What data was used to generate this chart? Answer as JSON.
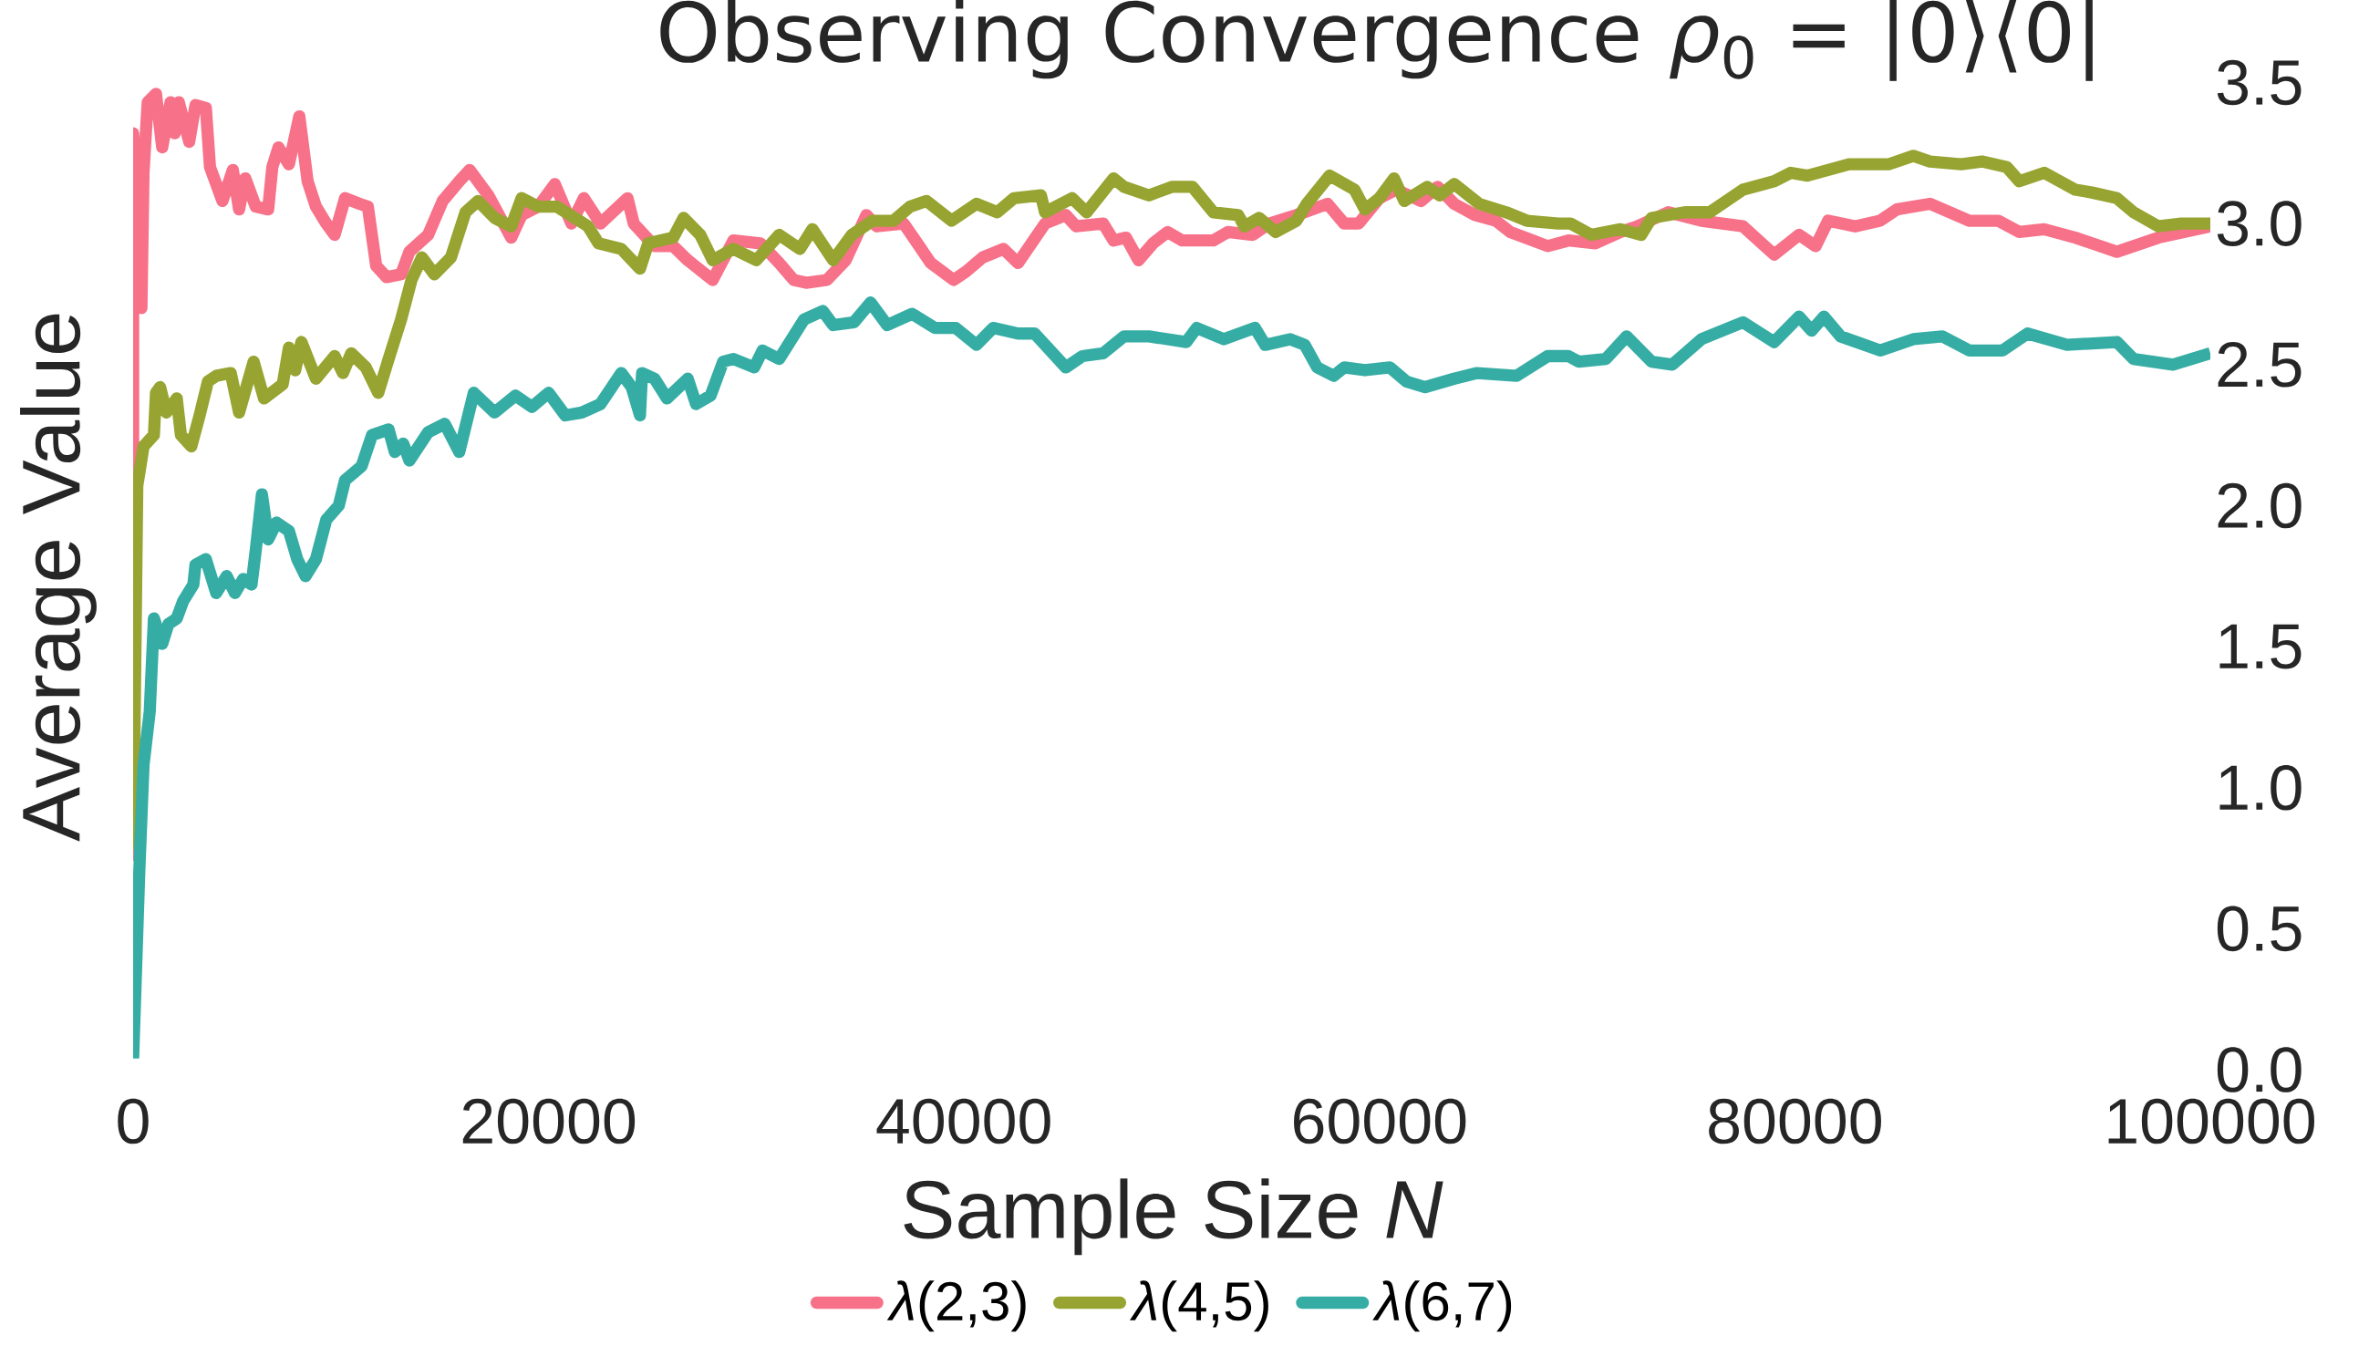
{
  "chart_data": {
    "type": "line",
    "title": "Observing Convergence *ρ*$_{0}$ = |0⟩⟨0|",
    "xlabel": "Sample Size *N*",
    "ylabel": "Average Value",
    "xlim": [
      0,
      100000
    ],
    "ylim": [
      0,
      3.5
    ],
    "xticks": [
      0,
      20000,
      40000,
      60000,
      80000,
      100000
    ],
    "yticks": [
      {
        "value": 0,
        "label": "0.0"
      },
      {
        "value": 0.5,
        "label": "0.5"
      },
      {
        "value": 1,
        "label": "1.0"
      },
      {
        "value": 1.5,
        "label": "1.5"
      },
      {
        "value": 2,
        "label": "2.0"
      },
      {
        "value": 2.5,
        "label": "2.5"
      },
      {
        "value": 3,
        "label": "3.0"
      },
      {
        "value": 3.5,
        "label": "3.5"
      }
    ],
    "legend": "bottom",
    "series": [
      {
        "name": "*λ*(2,3)",
        "color": "#f77189",
        "x": [
          0,
          0,
          400,
          500,
          700,
          1100,
          1400,
          1800,
          2000,
          2200,
          2700,
          3000,
          3500,
          3700,
          4300,
          4800,
          5100,
          5400,
          5900,
          6500,
          6700,
          7000,
          7500,
          8000,
          8400,
          8800,
          9300,
          9700,
          10200,
          10900,
          11300,
          11700,
          12200,
          12900,
          13300,
          14200,
          14900,
          15700,
          16200,
          17100,
          18200,
          18700,
          19500,
          20300,
          21100,
          21700,
          22500,
          23800,
          24100,
          25100,
          26000,
          26700,
          27900,
          28900,
          30200,
          31100,
          31800,
          32400,
          33400,
          34300,
          35300,
          35800,
          37100,
          38400,
          39500,
          40100,
          40900,
          41900,
          42600,
          43900,
          44900,
          45400,
          46700,
          47200,
          47800,
          48400,
          49100,
          49800,
          50500,
          52000,
          52700,
          53900,
          54700,
          56000,
          57500,
          58300,
          59000,
          60000,
          60800,
          62000,
          62800,
          63600,
          64600,
          65600,
          66300,
          68100,
          69100,
          70400,
          71600,
          72400,
          73900,
          75500,
          77500,
          79000,
          80200,
          81000,
          81600,
          82900,
          84100,
          84900,
          86500,
          88400,
          89800,
          90800,
          92000,
          93500,
          95500,
          97500,
          100000
        ],
        "values": [
          0.74,
          3.32,
          2.7,
          3.18,
          3.43,
          3.46,
          3.27,
          3.43,
          3.32,
          3.43,
          3.29,
          3.42,
          3.41,
          3.2,
          3.08,
          3.19,
          3.05,
          3.16,
          3.06,
          3.05,
          3.2,
          3.27,
          3.21,
          3.38,
          3.15,
          3.06,
          3.0,
          2.96,
          3.09,
          3.07,
          3.06,
          2.85,
          2.81,
          2.82,
          2.9,
          2.96,
          3.08,
          3.15,
          3.19,
          3.1,
          2.95,
          3.03,
          3.06,
          3.14,
          3.0,
          3.09,
          3.0,
          3.09,
          3.0,
          2.92,
          2.92,
          2.87,
          2.8,
          2.94,
          2.93,
          2.86,
          2.8,
          2.79,
          2.8,
          2.87,
          3.03,
          2.99,
          3.0,
          2.86,
          2.8,
          2.83,
          2.88,
          2.91,
          2.86,
          3.0,
          3.03,
          2.99,
          3.0,
          2.94,
          2.95,
          2.87,
          2.93,
          2.97,
          2.94,
          2.94,
          2.97,
          2.96,
          3.0,
          3.03,
          3.07,
          3.0,
          3.0,
          3.09,
          3.12,
          3.08,
          3.13,
          3.07,
          3.03,
          3.01,
          2.97,
          2.92,
          2.94,
          2.93,
          2.97,
          2.99,
          3.04,
          3.01,
          2.99,
          2.89,
          2.96,
          2.92,
          3.01,
          2.99,
          3.01,
          3.05,
          3.07,
          3.01,
          3.01,
          2.97,
          2.98,
          2.95,
          2.9,
          2.95,
          2.99
        ]
      },
      {
        "name": "*λ*(4,5)",
        "color": "#97a431",
        "x": [
          0,
          200,
          500,
          1000,
          1100,
          1300,
          1600,
          2100,
          2300,
          2800,
          3200,
          3600,
          4000,
          4700,
          5100,
          5800,
          6300,
          7200,
          7500,
          7800,
          8100,
          8800,
          9700,
          10100,
          10500,
          11200,
          11800,
          12300,
          12900,
          13400,
          13900,
          14500,
          15300,
          16000,
          16600,
          17400,
          18200,
          18700,
          19500,
          20400,
          21900,
          22400,
          23500,
          24400,
          24800,
          26000,
          26500,
          27300,
          27900,
          28900,
          30000,
          31100,
          32100,
          32700,
          33700,
          34600,
          35600,
          36600,
          37400,
          38200,
          39400,
          40600,
          41600,
          42400,
          43700,
          43900,
          45200,
          45900,
          47200,
          47700,
          48900,
          50000,
          51000,
          52000,
          53200,
          53500,
          54200,
          55000,
          56000,
          56500,
          57600,
          58800,
          59300,
          60000,
          60700,
          61200,
          62300,
          62900,
          63600,
          64800,
          66100,
          67100,
          68600,
          69200,
          70200,
          71600,
          72600,
          73100,
          74700,
          75900,
          77500,
          79000,
          79800,
          80600,
          82600,
          84500,
          85700,
          86500,
          88000,
          89000,
          90200,
          90800,
          92000,
          93500,
          94300,
          95500,
          96300,
          97500,
          98600,
          100000
        ],
        "values": [
          0.78,
          2.07,
          2.21,
          2.25,
          2.4,
          2.42,
          2.33,
          2.38,
          2.25,
          2.21,
          2.32,
          2.44,
          2.46,
          2.47,
          2.33,
          2.51,
          2.38,
          2.43,
          2.56,
          2.48,
          2.58,
          2.45,
          2.53,
          2.47,
          2.54,
          2.49,
          2.4,
          2.52,
          2.66,
          2.8,
          2.88,
          2.82,
          2.88,
          3.04,
          3.08,
          3.02,
          2.99,
          3.09,
          3.06,
          3.06,
          2.99,
          2.93,
          2.91,
          2.84,
          2.93,
          2.95,
          3.02,
          2.96,
          2.87,
          2.91,
          2.87,
          2.96,
          2.91,
          2.98,
          2.87,
          2.96,
          3.01,
          3.01,
          3.06,
          3.08,
          3.01,
          3.07,
          3.04,
          3.09,
          3.1,
          3.04,
          3.09,
          3.04,
          3.16,
          3.13,
          3.1,
          3.13,
          3.13,
          3.04,
          3.03,
          2.99,
          3.02,
          2.97,
          3.01,
          3.07,
          3.17,
          3.12,
          3.05,
          3.09,
          3.16,
          3.08,
          3.13,
          3.1,
          3.14,
          3.07,
          3.04,
          3.01,
          3.0,
          3.0,
          2.96,
          2.98,
          2.96,
          3.02,
          3.04,
          3.04,
          3.12,
          3.15,
          3.18,
          3.17,
          3.21,
          3.21,
          3.24,
          3.22,
          3.21,
          3.22,
          3.2,
          3.15,
          3.18,
          3.12,
          3.11,
          3.09,
          3.04,
          2.99,
          3.0,
          3.0
        ]
      },
      {
        "name": "*λ*(6,7)",
        "color": "#36ada4",
        "x": [
          0,
          300,
          500,
          800,
          1000,
          1400,
          1700,
          2100,
          2400,
          2900,
          3000,
          3500,
          4000,
          4500,
          4900,
          5300,
          5700,
          5900,
          6200,
          6500,
          6900,
          7500,
          7900,
          8300,
          8800,
          9300,
          9900,
          10200,
          11000,
          11500,
          12300,
          12600,
          13000,
          13300,
          14200,
          15000,
          15700,
          16400,
          17400,
          18400,
          19200,
          20000,
          20800,
          21600,
          22500,
          23500,
          24000,
          24400,
          24500,
          25100,
          25700,
          26700,
          27100,
          27800,
          28400,
          28900,
          29900,
          30300,
          31100,
          32300,
          33200,
          33700,
          34700,
          35500,
          36300,
          37500,
          38600,
          39600,
          40600,
          41400,
          42600,
          43400,
          44900,
          45700,
          46700,
          47700,
          48900,
          50700,
          51200,
          52500,
          54000,
          54500,
          55700,
          56400,
          57000,
          57800,
          58300,
          59300,
          60500,
          61300,
          62200,
          63600,
          64700,
          66600,
          68100,
          69100,
          69600,
          70900,
          71900,
          73100,
          74100,
          75500,
          77500,
          79000,
          80200,
          80800,
          81400,
          82200,
          84100,
          85700,
          87100,
          88400,
          90000,
          91200,
          93100,
          95500,
          96300,
          98200,
          100000
        ],
        "values": [
          0.04,
          0.71,
          1.08,
          1.27,
          1.6,
          1.51,
          1.58,
          1.6,
          1.66,
          1.72,
          1.79,
          1.81,
          1.69,
          1.75,
          1.69,
          1.74,
          1.72,
          1.84,
          2.04,
          1.88,
          1.94,
          1.91,
          1.81,
          1.75,
          1.81,
          1.95,
          2.0,
          2.09,
          2.14,
          2.25,
          2.27,
          2.19,
          2.22,
          2.16,
          2.26,
          2.29,
          2.19,
          2.4,
          2.33,
          2.39,
          2.35,
          2.4,
          2.32,
          2.33,
          2.36,
          2.47,
          2.42,
          2.32,
          2.47,
          2.45,
          2.38,
          2.45,
          2.36,
          2.39,
          2.51,
          2.52,
          2.49,
          2.55,
          2.52,
          2.66,
          2.69,
          2.64,
          2.65,
          2.72,
          2.64,
          2.68,
          2.63,
          2.63,
          2.57,
          2.63,
          2.61,
          2.61,
          2.49,
          2.53,
          2.54,
          2.6,
          2.6,
          2.58,
          2.63,
          2.59,
          2.63,
          2.57,
          2.59,
          2.57,
          2.49,
          2.46,
          2.49,
          2.48,
          2.49,
          2.44,
          2.42,
          2.45,
          2.47,
          2.46,
          2.53,
          2.53,
          2.51,
          2.52,
          2.6,
          2.51,
          2.5,
          2.59,
          2.65,
          2.58,
          2.67,
          2.62,
          2.67,
          2.6,
          2.55,
          2.59,
          2.6,
          2.55,
          2.55,
          2.61,
          2.57,
          2.58,
          2.52,
          2.5,
          2.54
        ]
      }
    ]
  }
}
